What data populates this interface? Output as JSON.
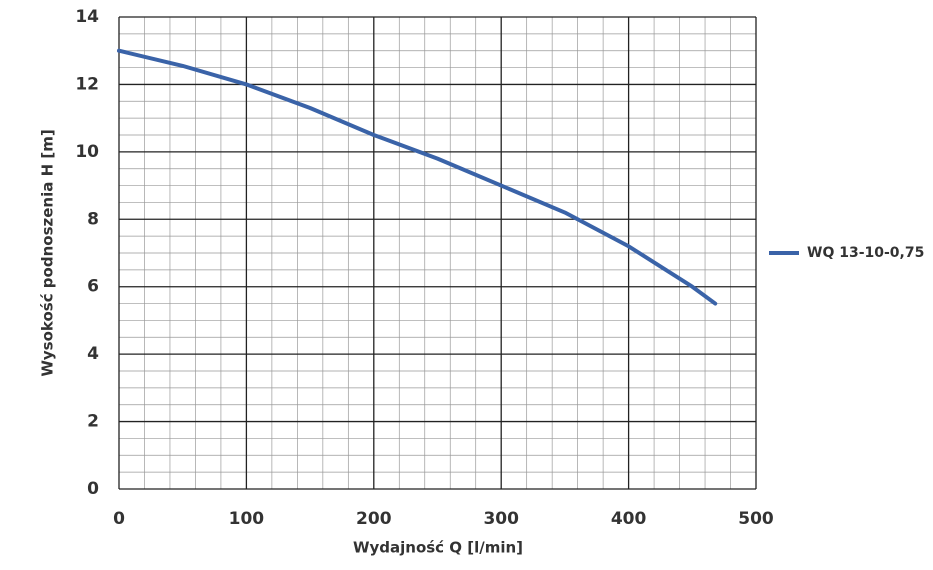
{
  "chart_data": {
    "type": "line",
    "xlabel": "Wydajność Q [l/min]",
    "ylabel": "Wysokość podnoszenia H [m]",
    "x": [
      0,
      50,
      100,
      150,
      200,
      250,
      300,
      350,
      400,
      450,
      468
    ],
    "series": [
      {
        "name": "WQ 13-10-0,75",
        "color": "#3a63a8",
        "values": [
          13,
          12.55,
          12,
          11.3,
          10.5,
          9.8,
          9,
          8.2,
          7.2,
          6,
          5.5
        ]
      }
    ],
    "xlim": [
      0,
      500
    ],
    "xticks": [
      0,
      100,
      200,
      300,
      400,
      500
    ],
    "ylim": [
      0,
      14
    ],
    "yticks": [
      0,
      2,
      4,
      6,
      8,
      10,
      12,
      14
    ],
    "grid": true,
    "legend": "right"
  }
}
